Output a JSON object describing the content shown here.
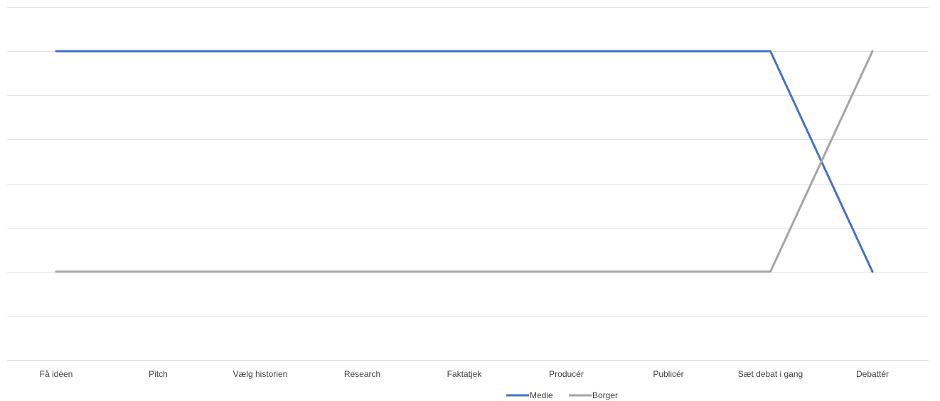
{
  "chart_data": {
    "type": "line",
    "title": "",
    "xlabel": "",
    "ylabel": "",
    "categories": [
      "Få idéen",
      "Pitch",
      "Vælg historien",
      "Research",
      "Faktatjek",
      "Producér",
      "Publicér",
      "Sæt debat i gang",
      "Debattér"
    ],
    "ylim": [
      0,
      8
    ],
    "y_gridlines": [
      0,
      1,
      2,
      3,
      4,
      5,
      6,
      7,
      8
    ],
    "grid": true,
    "y_tick_labels_visible": false,
    "legend_position": "bottom",
    "series": [
      {
        "name": "Medie",
        "color": "#4472C4",
        "values": [
          7,
          7,
          7,
          7,
          7,
          7,
          7,
          7,
          2
        ]
      },
      {
        "name": "Borger",
        "color": "#A5A5A5",
        "values": [
          2,
          2,
          2,
          2,
          2,
          2,
          2,
          2,
          7
        ]
      }
    ]
  }
}
